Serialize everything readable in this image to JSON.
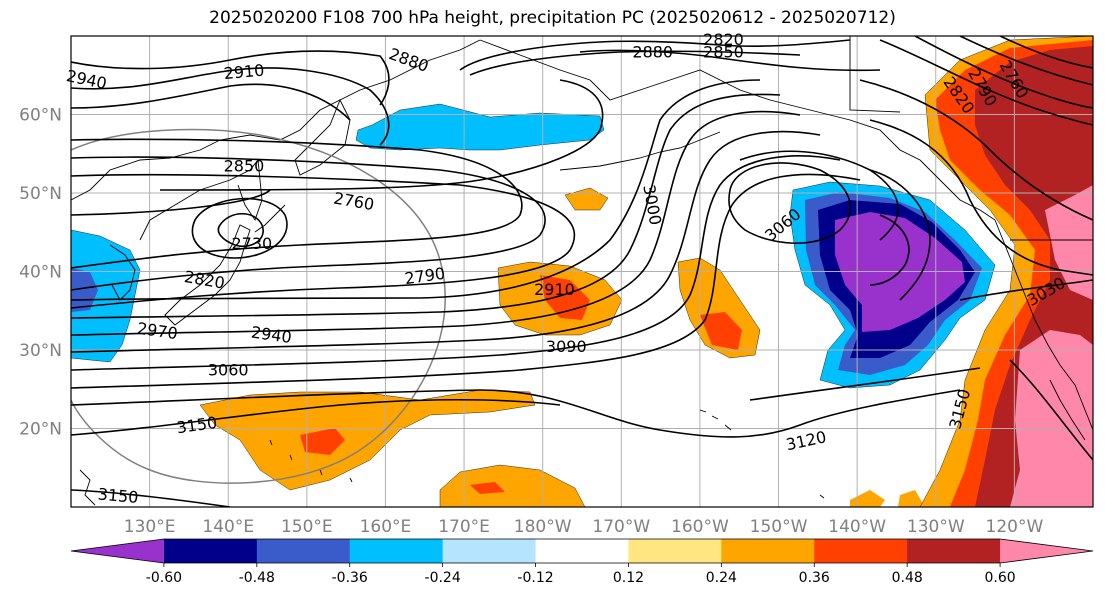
{
  "title": "2025020200 F108 700 hPa height, precipitation PC (2025020612 - 2025020712)",
  "map": {
    "lon_labels": [
      "130°E",
      "140°E",
      "150°E",
      "160°E",
      "170°E",
      "180°W",
      "170°W",
      "160°W",
      "150°W",
      "140°W",
      "130°W",
      "120°W"
    ],
    "lat_labels": [
      "20°N",
      "30°N",
      "40°N",
      "50°N",
      "60°N"
    ],
    "contour_labels": [
      {
        "text": "2940",
        "lon": 122,
        "lat": 64.5,
        "rot": 12
      },
      {
        "text": "2910",
        "lon": 142,
        "lat": 65.5,
        "rot": -5
      },
      {
        "text": "2880",
        "lon": 163,
        "lat": 67,
        "rot": 20
      },
      {
        "text": "2880",
        "lon": -166,
        "lat": 68,
        "rot": 0
      },
      {
        "text": "2850",
        "lon": -157,
        "lat": 68,
        "rot": 0
      },
      {
        "text": "2820",
        "lon": -157,
        "lat": 69.6,
        "rot": 0
      },
      {
        "text": "2850",
        "lon": 142,
        "lat": 53.5,
        "rot": 0
      },
      {
        "text": "2760",
        "lon": 156,
        "lat": 49,
        "rot": 10
      },
      {
        "text": "2730",
        "lon": 143,
        "lat": 43.6,
        "rot": 0
      },
      {
        "text": "2820",
        "lon": 137,
        "lat": 39,
        "rot": 10
      },
      {
        "text": "2790",
        "lon": 165,
        "lat": 39.5,
        "rot": -8
      },
      {
        "text": "2910",
        "lon": -178.5,
        "lat": 37.8,
        "rot": 0
      },
      {
        "text": "2970",
        "lon": 131,
        "lat": 32.5,
        "rot": 8
      },
      {
        "text": "2940",
        "lon": 145.5,
        "lat": 32,
        "rot": 8
      },
      {
        "text": "3090",
        "lon": -177,
        "lat": 30.5,
        "rot": 0
      },
      {
        "text": "3060",
        "lon": 140,
        "lat": 27.5,
        "rot": 0
      },
      {
        "text": "3150",
        "lon": 136,
        "lat": 20.5,
        "rot": -8
      },
      {
        "text": "3150",
        "lon": 126,
        "lat": 11.5,
        "rot": 5
      },
      {
        "text": "3000",
        "lon": -166,
        "lat": 48.5,
        "rot": 80
      },
      {
        "text": "3060",
        "lon": -149.5,
        "lat": 46,
        "rot": -40
      },
      {
        "text": "3120",
        "lon": -146.5,
        "lat": 18.5,
        "rot": -12
      },
      {
        "text": "2820",
        "lon": -127,
        "lat": 62.5,
        "rot": 55
      },
      {
        "text": "2790",
        "lon": -124,
        "lat": 63.5,
        "rot": 60
      },
      {
        "text": "2760",
        "lon": -120,
        "lat": 64.5,
        "rot": 60
      },
      {
        "text": "3030",
        "lon": -116,
        "lat": 37.5,
        "rot": -30
      },
      {
        "text": "3150",
        "lon": -127,
        "lat": 22.5,
        "rot": -75
      }
    ]
  },
  "colorbar": {
    "colors": [
      "#9932CC",
      "#00008B",
      "#3A5CCB",
      "#00BFFF",
      "#B4E4FF",
      "#FFFFFF",
      "#FFE680",
      "#FFA500",
      "#FF4000",
      "#B22222",
      "#FF88AA"
    ],
    "tick_labels": [
      "-0.60",
      "-0.48",
      "-0.36",
      "-0.24",
      "-0.12",
      "0.12",
      "0.24",
      "0.36",
      "0.48",
      "0.60"
    ]
  },
  "colors": {
    "purple": "#9932CC",
    "navy": "#00008B",
    "royal": "#3A5CCB",
    "sky": "#00BFFF",
    "pale_blue": "#B4E4FF",
    "pale_yellow": "#FFE680",
    "orange": "#FFA500",
    "red_orange": "#FF4000",
    "dark_red": "#B22222",
    "pink": "#FF88AA",
    "grid": "#B0B0B0",
    "coast": "#000000",
    "tick_label": "#808080"
  }
}
